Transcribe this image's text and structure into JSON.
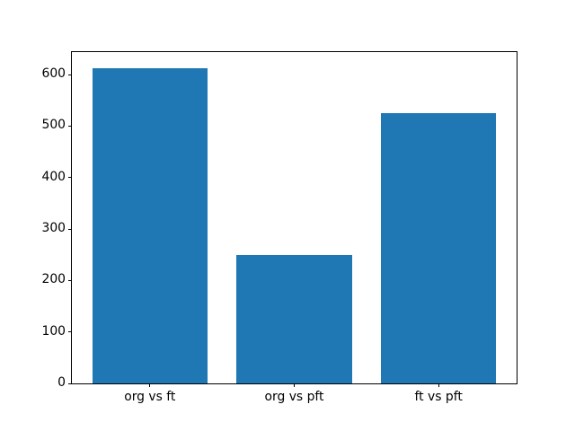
{
  "chart_data": {
    "type": "bar",
    "categories": [
      "org vs ft",
      "org vs pft",
      "ft vs pft"
    ],
    "values": [
      613,
      249,
      525
    ],
    "title": "",
    "xlabel": "",
    "ylabel": "",
    "ylim": [
      0,
      643.65
    ],
    "yticks": [
      0,
      100,
      200,
      300,
      400,
      500,
      600
    ],
    "bar_color": "#1f77b4",
    "axes_edge_color": "#000000",
    "tick_label_color": "#000000",
    "background_color": "#ffffff",
    "grid": false,
    "legend": null
  }
}
